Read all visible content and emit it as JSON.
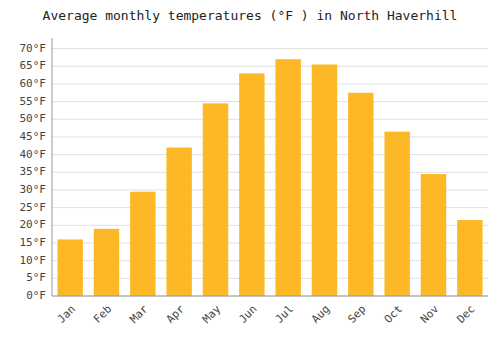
{
  "chart_data": {
    "type": "bar",
    "title": "Average monthly temperatures (°F ) in North Haverhill",
    "categories": [
      "Jan",
      "Feb",
      "Mar",
      "Apr",
      "May",
      "Jun",
      "Jul",
      "Aug",
      "Sep",
      "Oct",
      "Nov",
      "Dec"
    ],
    "values": [
      16,
      19,
      29.5,
      42,
      54.5,
      63,
      67,
      65.5,
      57.5,
      46.5,
      34.5,
      21.5
    ],
    "color": "#FDB827",
    "ylim": [
      0,
      73
    ],
    "yticks": [
      {
        "value": 0,
        "label": "0°F"
      },
      {
        "value": 5,
        "label": "5°F"
      },
      {
        "value": 10,
        "label": "10°F"
      },
      {
        "value": 15,
        "label": "15°F"
      },
      {
        "value": 20,
        "label": "20°F"
      },
      {
        "value": 25,
        "label": "25°F"
      },
      {
        "value": 30,
        "label": "30°F"
      },
      {
        "value": 35,
        "label": "35°F"
      },
      {
        "value": 40,
        "label": "40°F"
      },
      {
        "value": 45,
        "label": "45°F"
      },
      {
        "value": 50,
        "label": "50°F"
      },
      {
        "value": 55,
        "label": "55°F"
      },
      {
        "value": 60,
        "label": "60°F"
      },
      {
        "value": 65,
        "label": "65°F"
      },
      {
        "value": 70,
        "label": "70°F"
      }
    ],
    "grid": true
  }
}
